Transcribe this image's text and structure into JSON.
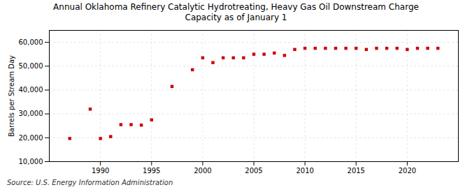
{
  "chart_data": {
    "type": "scatter",
    "title": "Annual Oklahoma Refinery Catalytic Hydrotreating, Heavy Gas Oil Downstream Charge\nCapacity as of January 1",
    "ylabel": "Barrels per Stream Day",
    "source": "Source: U.S. Energy Information Administration",
    "color": "#cc0000",
    "marker": "square",
    "x": [
      1987,
      1989,
      1990,
      1991,
      1992,
      1993,
      1994,
      1995,
      1997,
      1999,
      2000,
      2001,
      2002,
      2003,
      2004,
      2005,
      2006,
      2007,
      2008,
      2009,
      2010,
      2011,
      2012,
      2013,
      2014,
      2015,
      2016,
      2017,
      2018,
      2019,
      2020,
      2021,
      2022,
      2023
    ],
    "values": [
      19700,
      32000,
      19700,
      20500,
      25500,
      25500,
      25300,
      27500,
      41500,
      48500,
      53500,
      51500,
      53500,
      53500,
      53500,
      55000,
      55000,
      55500,
      54500,
      57000,
      57500,
      57500,
      57500,
      57500,
      57500,
      57500,
      57000,
      57500,
      57500,
      57500,
      57000,
      57500,
      57500,
      57500
    ],
    "xlim": [
      1985,
      2025
    ],
    "xticks": [
      1990,
      1995,
      2000,
      2005,
      2010,
      2015,
      2020
    ],
    "ylim": [
      10000,
      65000
    ],
    "yticks": [
      {
        "value": 10000,
        "label": "10,000"
      },
      {
        "value": 20000,
        "label": "20,000"
      },
      {
        "value": 30000,
        "label": "30,000"
      },
      {
        "value": 40000,
        "label": "40,000"
      },
      {
        "value": 50000,
        "label": "50,000"
      },
      {
        "value": 60000,
        "label": "60,000"
      }
    ],
    "grid": true
  }
}
